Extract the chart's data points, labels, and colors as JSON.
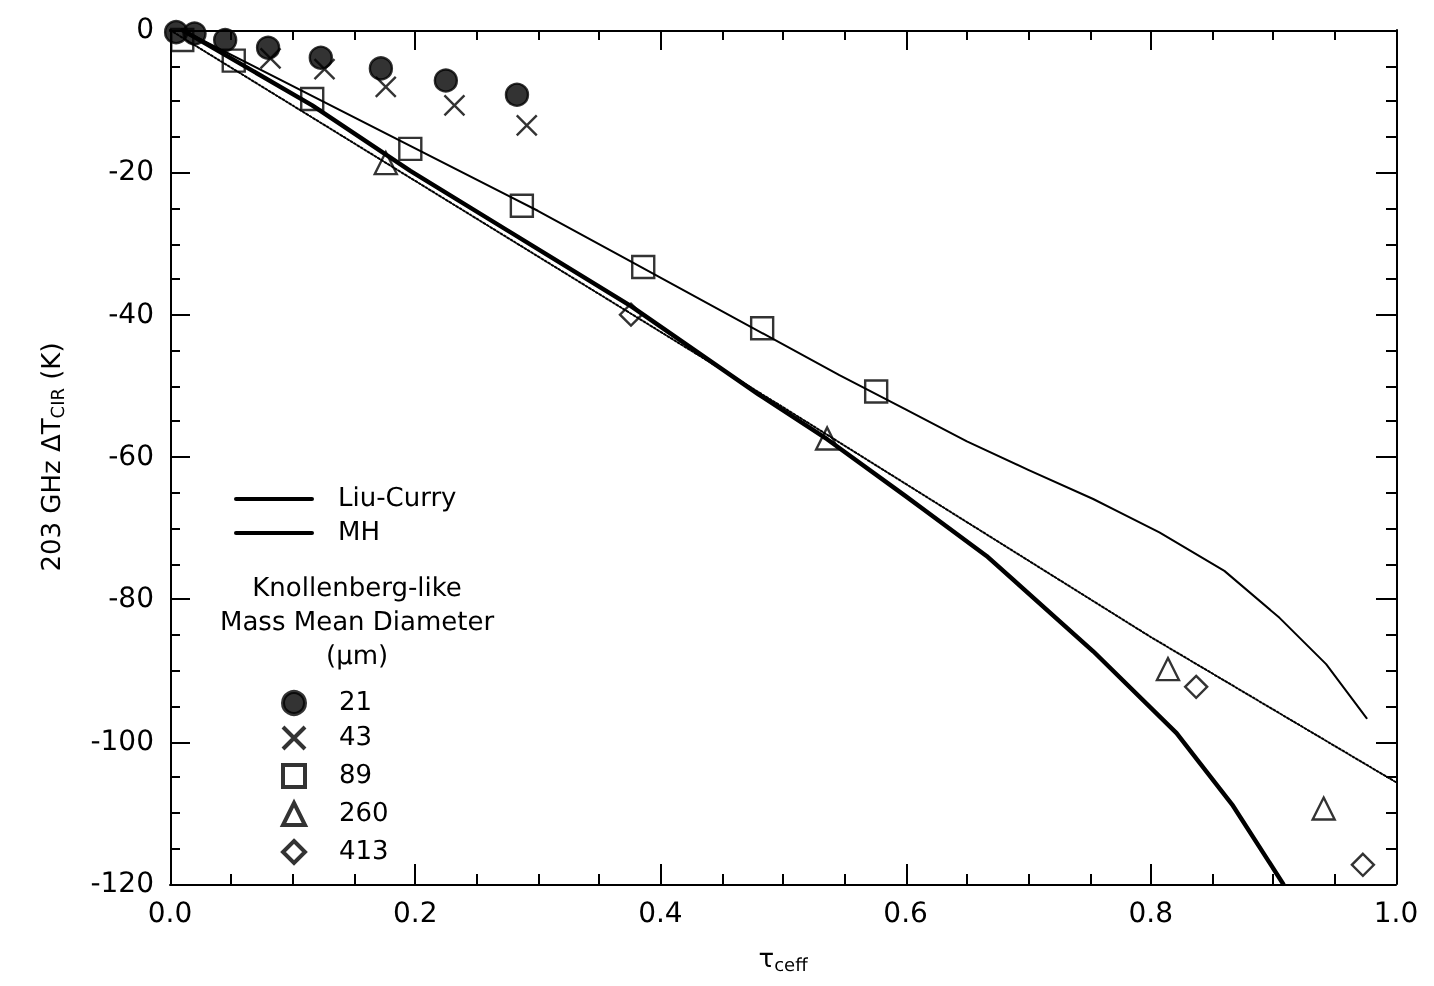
{
  "chart_data": {
    "type": "scatter",
    "xlabel": "τ$_{ceff}$",
    "ylabel": "203 GHz ΔT$_{CIR}$ (K)",
    "legend_title": "Knollenberg-like\nMass Mean Diameter\n(μm)",
    "xlim": [
      0,
      1.0
    ],
    "ylim": [
      -120,
      0
    ],
    "xticks": [
      {
        "value": 0,
        "label": "0.0"
      },
      {
        "value": 0.2,
        "label": "0.2"
      },
      {
        "value": 0.4,
        "label": "0.4"
      },
      {
        "value": 0.6,
        "label": "0.6"
      },
      {
        "value": 0.8,
        "label": "0.8"
      },
      {
        "value": 1.0,
        "label": "1.0"
      }
    ],
    "yticks": [
      -120,
      -100,
      -80,
      -60,
      -40,
      -20,
      0
    ],
    "grid": false,
    "legend": "left",
    "series": [
      {
        "name": "Liu-Curry",
        "type": "line",
        "color": "#000000",
        "marker": "none",
        "line_style": "solid",
        "x": [
          0.01,
          0.3,
          0.546,
          0.6,
          0.65,
          0.7,
          0.753,
          0.807,
          0.86,
          0.905,
          0.943,
          0.976
        ],
        "values": [
          0,
          -25.4,
          -48.5,
          -53.3,
          -57.8,
          -61.8,
          -65.9,
          -70.6,
          -76,
          -82.6,
          -89.1,
          -96.7
        ]
      },
      {
        "name": "MH",
        "type": "line",
        "color": "#000000",
        "marker": "none",
        "line_style": "solid",
        "x": [
          0.01,
          0.116,
          0.196,
          0.376,
          0.48,
          0.536,
          0.6,
          0.666,
          0.753,
          0.821,
          0.867,
          0.908
        ],
        "values": [
          0,
          -10.6,
          -19.8,
          -38.8,
          -51.2,
          -57.5,
          -65.5,
          -73.9,
          -87.3,
          -98.8,
          -109,
          -120
        ]
      },
      {
        "type": "line",
        "color": "#000000",
        "marker": "none",
        "line_style": "dotted",
        "x": [
          0,
          0.5,
          0.8,
          1.0
        ],
        "values": [
          0,
          -53,
          -85.3,
          -105.7
        ]
      },
      {
        "name": "21",
        "color": "#000000",
        "marker": "circle",
        "x": [
          0.005,
          0.02,
          0.045,
          0.08,
          0.123,
          0.172,
          0.225,
          0.283
        ],
        "values": [
          -0.3,
          -0.5,
          -1.4,
          -2.5,
          -3.9,
          -5.4,
          -7.1,
          -9.1
        ]
      },
      {
        "name": "43",
        "color": "#000000",
        "marker": "cross",
        "x": [
          0.082,
          0.126,
          0.176,
          0.232,
          0.291
        ],
        "values": [
          -4.0,
          -5.5,
          -8.0,
          -10.6,
          -13.4
        ]
      },
      {
        "name": "89",
        "color": "#000000",
        "marker": "square",
        "x": [
          0.01,
          0.052,
          0.116,
          0.196,
          0.287,
          0.386,
          0.483,
          0.576
        ],
        "values": [
          -1.4,
          -4.3,
          -9.7,
          -16.7,
          -24.7,
          -33.3,
          -41.9,
          -50.8
        ]
      },
      {
        "name": "260",
        "color": "#000000",
        "marker": "triangle",
        "x": [
          0.176,
          0.536,
          0.814,
          0.941
        ],
        "values": [
          -18.7,
          -57.4,
          -89.8,
          -109.4
        ]
      },
      {
        "name": "413",
        "color": "#000000",
        "marker": "diamond",
        "x": [
          0.376,
          0.837,
          0.973
        ],
        "values": [
          -40.0,
          -92.3,
          -117.3
        ]
      }
    ]
  }
}
